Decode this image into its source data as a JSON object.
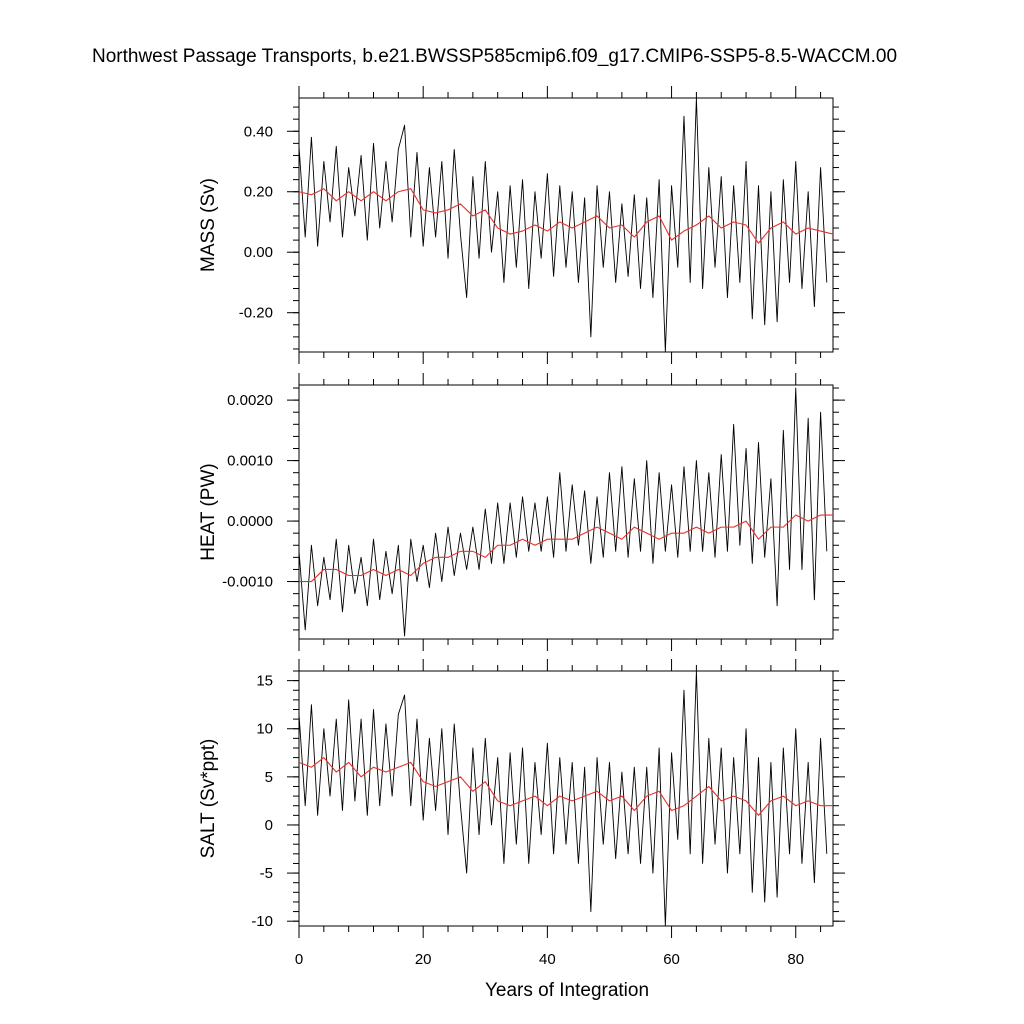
{
  "page": {
    "title": "Northwest Passage Transports, b.e21.BWSSP585cmip6.f09_g17.CMIP6-SSP5-8.5-WACCM.00"
  },
  "chart_data": {
    "type": "line",
    "xlabel": "Years of Integration",
    "xlim": [
      0,
      86
    ],
    "xticks": [
      0,
      20,
      40,
      60,
      80
    ],
    "colors": {
      "raw": "#000000",
      "smoothed": "#e8302a"
    },
    "panels": [
      {
        "ylabel": "MASS (Sv)",
        "ylim": [
          -0.33,
          0.51
        ],
        "yticks": [
          {
            "v": -0.2,
            "label": "-0.20"
          },
          {
            "v": 0.0,
            "label": "0.00"
          },
          {
            "v": 0.2,
            "label": "0.20"
          },
          {
            "v": 0.4,
            "label": "0.40"
          }
        ],
        "smoothed": {
          "x": [
            0,
            2,
            4,
            6,
            8,
            10,
            12,
            14,
            16,
            18,
            20,
            22,
            24,
            26,
            28,
            30,
            32,
            34,
            36,
            38,
            40,
            42,
            44,
            46,
            48,
            50,
            52,
            54,
            56,
            58,
            60,
            62,
            64,
            66,
            68,
            70,
            72,
            74,
            76,
            78,
            80,
            82,
            84,
            86
          ],
          "y": [
            0.2,
            0.19,
            0.21,
            0.17,
            0.2,
            0.17,
            0.2,
            0.17,
            0.2,
            0.21,
            0.14,
            0.13,
            0.14,
            0.16,
            0.12,
            0.14,
            0.08,
            0.06,
            0.07,
            0.09,
            0.07,
            0.1,
            0.08,
            0.1,
            0.12,
            0.08,
            0.09,
            0.05,
            0.1,
            0.12,
            0.04,
            0.07,
            0.09,
            0.12,
            0.08,
            0.1,
            0.09,
            0.03,
            0.08,
            0.1,
            0.06,
            0.08,
            0.07,
            0.06
          ]
        },
        "raw": {
          "x": [
            0,
            1,
            2,
            3,
            4,
            5,
            6,
            7,
            8,
            9,
            10,
            11,
            12,
            13,
            14,
            15,
            16,
            17,
            18,
            19,
            20,
            21,
            22,
            23,
            24,
            25,
            26,
            27,
            28,
            29,
            30,
            31,
            32,
            33,
            34,
            35,
            36,
            37,
            38,
            39,
            40,
            41,
            42,
            43,
            44,
            45,
            46,
            47,
            48,
            49,
            50,
            51,
            52,
            53,
            54,
            55,
            56,
            57,
            58,
            59,
            60,
            61,
            62,
            63,
            64,
            65,
            66,
            67,
            68,
            69,
            70,
            71,
            72,
            73,
            74,
            75,
            76,
            77,
            78,
            79,
            80,
            81,
            82,
            83,
            84,
            85
          ],
          "y": [
            0.35,
            0.05,
            0.38,
            0.02,
            0.3,
            0.1,
            0.35,
            0.05,
            0.28,
            0.12,
            0.32,
            0.04,
            0.36,
            0.08,
            0.3,
            0.1,
            0.34,
            0.42,
            0.05,
            0.33,
            0.02,
            0.28,
            0.05,
            0.3,
            -0.02,
            0.34,
            0.06,
            -0.15,
            0.25,
            -0.02,
            0.3,
            0.0,
            0.2,
            -0.1,
            0.22,
            -0.05,
            0.24,
            -0.12,
            0.2,
            -0.02,
            0.26,
            -0.08,
            0.22,
            -0.05,
            0.2,
            -0.1,
            0.18,
            -0.28,
            0.22,
            -0.05,
            0.2,
            -0.1,
            0.16,
            -0.08,
            0.19,
            -0.12,
            0.18,
            -0.15,
            0.24,
            -0.33,
            0.22,
            -0.05,
            0.45,
            -0.1,
            0.51,
            -0.12,
            0.28,
            -0.05,
            0.25,
            -0.15,
            0.22,
            -0.1,
            0.3,
            -0.22,
            0.22,
            -0.24,
            0.2,
            -0.23,
            0.24,
            -0.1,
            0.3,
            -0.12,
            0.2,
            -0.18,
            0.28,
            -0.1
          ]
        }
      },
      {
        "ylabel": "HEAT (PW)",
        "ylim": [
          -0.00195,
          0.00225
        ],
        "yticks": [
          {
            "v": -0.001,
            "label": "-0.0010"
          },
          {
            "v": 0.0,
            "label": "0.0000"
          },
          {
            "v": 0.001,
            "label": "0.0010"
          },
          {
            "v": 0.002,
            "label": "0.0020"
          }
        ],
        "smoothed": {
          "x": [
            0,
            2,
            4,
            6,
            8,
            10,
            12,
            14,
            16,
            18,
            20,
            22,
            24,
            26,
            28,
            30,
            32,
            34,
            36,
            38,
            40,
            42,
            44,
            46,
            48,
            50,
            52,
            54,
            56,
            58,
            60,
            62,
            64,
            66,
            68,
            70,
            72,
            74,
            76,
            78,
            80,
            82,
            84,
            86
          ],
          "y": [
            -0.001,
            -0.001,
            -0.0008,
            -0.0008,
            -0.0009,
            -0.0009,
            -0.0008,
            -0.0009,
            -0.0008,
            -0.0009,
            -0.0007,
            -0.0006,
            -0.0006,
            -0.0005,
            -0.0005,
            -0.0006,
            -0.0004,
            -0.0004,
            -0.0003,
            -0.0004,
            -0.0003,
            -0.0003,
            -0.0003,
            -0.0002,
            -0.0001,
            -0.0002,
            -0.0003,
            -0.0001,
            -0.0002,
            -0.0003,
            -0.0002,
            -0.0002,
            -0.0001,
            -0.0002,
            -0.0001,
            -0.0001,
            0.0,
            -0.0003,
            -0.0001,
            -0.0001,
            0.0001,
            0.0,
            0.0001,
            0.0001
          ]
        },
        "raw": {
          "x": [
            0,
            1,
            2,
            3,
            4,
            5,
            6,
            7,
            8,
            9,
            10,
            11,
            12,
            13,
            14,
            15,
            16,
            17,
            18,
            19,
            20,
            21,
            22,
            23,
            24,
            25,
            26,
            27,
            28,
            29,
            30,
            31,
            32,
            33,
            34,
            35,
            36,
            37,
            38,
            39,
            40,
            41,
            42,
            43,
            44,
            45,
            46,
            47,
            48,
            49,
            50,
            51,
            52,
            53,
            54,
            55,
            56,
            57,
            58,
            59,
            60,
            61,
            62,
            63,
            64,
            65,
            66,
            67,
            68,
            69,
            70,
            71,
            72,
            73,
            74,
            75,
            76,
            77,
            78,
            79,
            80,
            81,
            82,
            83,
            84,
            85
          ],
          "y": [
            -0.0005,
            -0.0018,
            -0.0004,
            -0.0014,
            -0.0006,
            -0.0013,
            -0.0003,
            -0.0015,
            -0.0004,
            -0.0012,
            -0.0006,
            -0.0014,
            -0.0003,
            -0.0013,
            -0.0005,
            -0.0012,
            -0.0004,
            -0.0019,
            -0.0003,
            -0.001,
            -0.0004,
            -0.0011,
            -0.0002,
            -0.001,
            -0.0001,
            -0.0009,
            -0.0002,
            -0.0008,
            -0.0001,
            -0.0008,
            0.0002,
            -0.0007,
            0.0003,
            -0.0007,
            0.0003,
            -0.0006,
            0.0004,
            -0.0005,
            0.0003,
            -0.0005,
            0.0004,
            -0.0006,
            0.0008,
            -0.0005,
            0.0006,
            -0.0004,
            0.0005,
            -0.0007,
            0.0004,
            -0.0006,
            0.0008,
            -0.0005,
            0.0009,
            -0.0006,
            0.0007,
            -0.0005,
            0.001,
            -0.0007,
            0.0008,
            -0.0005,
            0.0006,
            -0.0006,
            0.0009,
            -0.0005,
            0.001,
            -0.0005,
            0.0008,
            -0.0006,
            0.0011,
            -0.0005,
            0.0016,
            -0.0004,
            0.0012,
            -0.0007,
            0.0013,
            -0.0006,
            0.0007,
            -0.0014,
            0.0015,
            -0.0008,
            0.0022,
            -0.0008,
            0.0017,
            -0.0013,
            0.0018,
            -0.0005
          ]
        }
      },
      {
        "ylabel": "SALT (Sv*ppt)",
        "ylim": [
          -10.5,
          16
        ],
        "yticks": [
          {
            "v": -10,
            "label": "-10"
          },
          {
            "v": -5,
            "label": "-5"
          },
          {
            "v": 0,
            "label": "0"
          },
          {
            "v": 5,
            "label": "5"
          },
          {
            "v": 10,
            "label": "10"
          },
          {
            "v": 15,
            "label": "15"
          }
        ],
        "smoothed": {
          "x": [
            0,
            2,
            4,
            6,
            8,
            10,
            12,
            14,
            16,
            18,
            20,
            22,
            24,
            26,
            28,
            30,
            32,
            34,
            36,
            38,
            40,
            42,
            44,
            46,
            48,
            50,
            52,
            54,
            56,
            58,
            60,
            62,
            64,
            66,
            68,
            70,
            72,
            74,
            76,
            78,
            80,
            82,
            84,
            86
          ],
          "y": [
            6.5,
            6.0,
            7.0,
            5.5,
            6.5,
            5.0,
            6.0,
            5.5,
            6.0,
            6.5,
            4.5,
            4.0,
            4.5,
            5.0,
            3.5,
            4.5,
            2.5,
            2.0,
            2.5,
            3.0,
            2.0,
            3.0,
            2.5,
            3.0,
            3.5,
            2.5,
            3.0,
            1.5,
            3.0,
            3.5,
            1.5,
            2.0,
            3.0,
            4.0,
            2.5,
            3.0,
            2.5,
            1.0,
            2.5,
            3.0,
            2.0,
            2.5,
            2.0,
            2.0
          ]
        },
        "raw": {
          "x": [
            0,
            1,
            2,
            3,
            4,
            5,
            6,
            7,
            8,
            9,
            10,
            11,
            12,
            13,
            14,
            15,
            16,
            17,
            18,
            19,
            20,
            21,
            22,
            23,
            24,
            25,
            26,
            27,
            28,
            29,
            30,
            31,
            32,
            33,
            34,
            35,
            36,
            37,
            38,
            39,
            40,
            41,
            42,
            43,
            44,
            45,
            46,
            47,
            48,
            49,
            50,
            51,
            52,
            53,
            54,
            55,
            56,
            57,
            58,
            59,
            60,
            61,
            62,
            63,
            64,
            65,
            66,
            67,
            68,
            69,
            70,
            71,
            72,
            73,
            74,
            75,
            76,
            77,
            78,
            79,
            80,
            81,
            82,
            83,
            84,
            85
          ],
          "y": [
            11.5,
            2.0,
            12.5,
            1.0,
            10.0,
            3.0,
            11.0,
            1.5,
            13.0,
            2.5,
            11.0,
            1.0,
            12.0,
            2.0,
            10.5,
            3.0,
            11.5,
            13.5,
            2.0,
            11.0,
            0.5,
            9.0,
            1.5,
            10.0,
            -1.0,
            10.5,
            2.0,
            -5.0,
            8.0,
            -1.0,
            9.0,
            0.0,
            7.0,
            -4.0,
            7.5,
            -2.0,
            8.0,
            -4.0,
            6.5,
            -1.0,
            8.5,
            -3.0,
            7.0,
            -2.0,
            6.5,
            -4.0,
            6.0,
            -9.0,
            7.0,
            -2.0,
            6.5,
            -3.5,
            5.5,
            -3.0,
            6.0,
            -4.0,
            6.0,
            -5.0,
            8.0,
            -10.5,
            7.5,
            -1.5,
            14.0,
            -3.0,
            16.0,
            -4.0,
            9.0,
            -2.0,
            8.0,
            -5.0,
            7.0,
            -3.0,
            10.0,
            -7.0,
            7.0,
            -8.0,
            6.5,
            -7.5,
            8.0,
            -3.0,
            10.0,
            -4.0,
            6.5,
            -6.0,
            9.0,
            -3.0
          ]
        }
      }
    ]
  }
}
